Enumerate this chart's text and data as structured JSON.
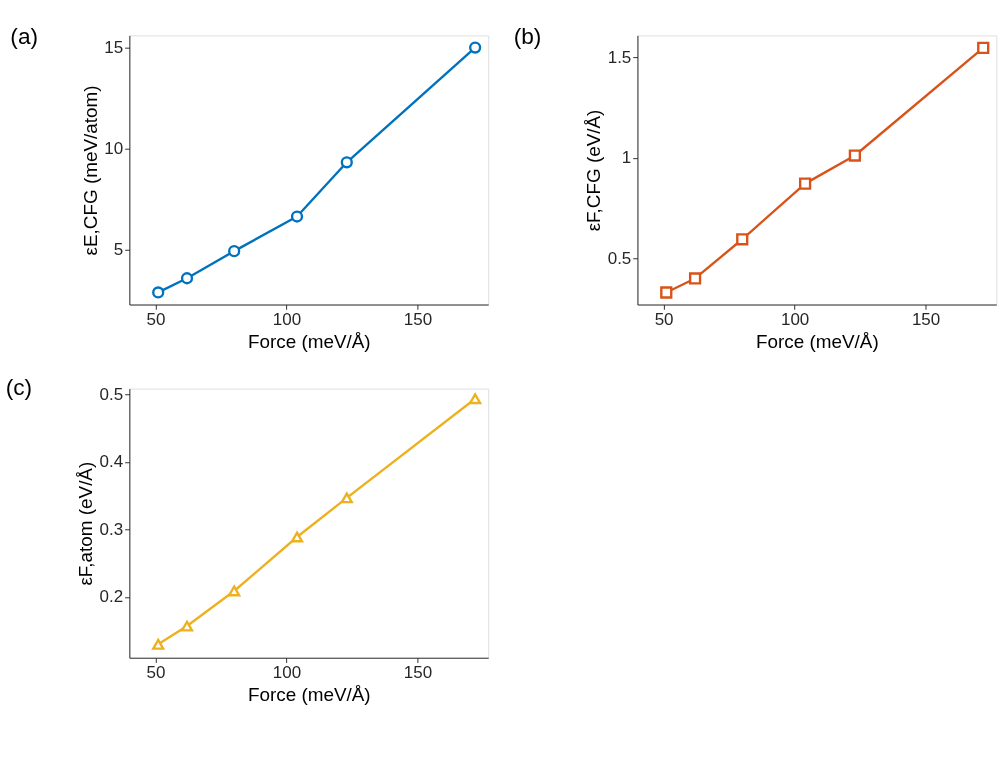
{
  "chart_data": [
    {
      "type": "line",
      "title": "(a)",
      "xlabel": "Force (meV/Å)",
      "ylabel": "εE,CFG (meV/atom)",
      "x": [
        51,
        62,
        80,
        104,
        123,
        172
      ],
      "xlim": [
        40,
        177
      ],
      "xticks": [
        50,
        100,
        150
      ],
      "ylim": [
        2.3,
        15.6
      ],
      "yticks": [
        5,
        10,
        15
      ],
      "grid": false,
      "marker": "circle",
      "line_style": "solid",
      "series": [
        {
          "color": "#0072bd",
          "values": [
            2.9,
            3.6,
            4.94,
            6.65,
            9.33,
            15.0
          ]
        }
      ]
    },
    {
      "type": "line",
      "title": "(b)",
      "xlabel": "Force (meV/Å)",
      "ylabel": "εF,CFG (eV/Å)",
      "x": [
        51,
        62,
        80,
        104,
        123,
        172
      ],
      "xlim": [
        40,
        177
      ],
      "xticks": [
        50,
        100,
        150
      ],
      "ylim": [
        0.27,
        1.61
      ],
      "yticks": [
        0.5,
        1,
        1.5
      ],
      "grid": false,
      "marker": "square",
      "line_style": "solid",
      "series": [
        {
          "color": "#d95319",
          "values": [
            0.33,
            0.4,
            0.595,
            0.872,
            1.012,
            1.548
          ]
        }
      ]
    },
    {
      "type": "line",
      "title": "(c)",
      "xlabel": "Force (meV/Å)",
      "ylabel": "εF,atom (eV/Å)",
      "x": [
        51,
        62,
        80,
        104,
        123,
        172
      ],
      "xlim": [
        40,
        177
      ],
      "xticks": [
        50,
        100,
        150
      ],
      "ylim": [
        0.11,
        0.509
      ],
      "yticks": [
        0.2,
        0.3,
        0.4,
        0.5
      ],
      "grid": false,
      "marker": "triangle",
      "line_style": "solid",
      "series": [
        {
          "color": "#edb120",
          "values": [
            0.13,
            0.157,
            0.209,
            0.289,
            0.347,
            0.494
          ]
        }
      ]
    }
  ]
}
